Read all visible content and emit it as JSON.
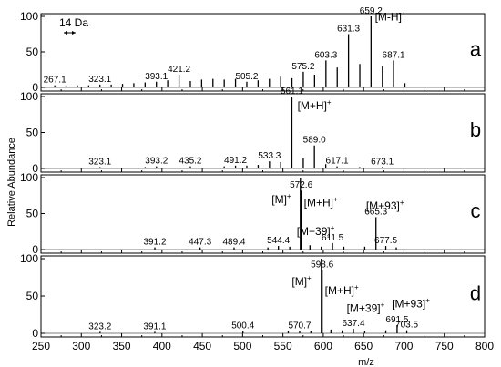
{
  "chart_data": {
    "type": "bar",
    "xlabel": "m/z",
    "ylabel": "Relative Abundance",
    "xlim": [
      250,
      800
    ],
    "x_ticks": [
      "250",
      "300",
      "350",
      "400",
      "450",
      "500",
      "550",
      "600",
      "650",
      "700",
      "750",
      "800"
    ],
    "grid": false,
    "panels": [
      {
        "letter": "a",
        "ylim": [
          0,
          100
        ],
        "y_ticks": [
          "0",
          "50",
          "100"
        ],
        "scale_annotation": "14 Da",
        "peaks": [
          {
            "x": 267.1,
            "y": 3,
            "label": "267.1"
          },
          {
            "x": 281.1,
            "y": 3
          },
          {
            "x": 295.1,
            "y": 3
          },
          {
            "x": 309.1,
            "y": 3
          },
          {
            "x": 323.1,
            "y": 4,
            "label": "323.1"
          },
          {
            "x": 337.1,
            "y": 4
          },
          {
            "x": 351.1,
            "y": 5
          },
          {
            "x": 365.1,
            "y": 6
          },
          {
            "x": 379.1,
            "y": 7
          },
          {
            "x": 393.1,
            "y": 8,
            "label": "393.1"
          },
          {
            "x": 407.1,
            "y": 10
          },
          {
            "x": 421.2,
            "y": 18,
            "label": "421.2"
          },
          {
            "x": 435.2,
            "y": 9
          },
          {
            "x": 449.2,
            "y": 11
          },
          {
            "x": 463.2,
            "y": 12
          },
          {
            "x": 477.2,
            "y": 11
          },
          {
            "x": 491.2,
            "y": 12
          },
          {
            "x": 505.2,
            "y": 8,
            "label": "505.2"
          },
          {
            "x": 519.2,
            "y": 10
          },
          {
            "x": 533.2,
            "y": 12
          },
          {
            "x": 547.2,
            "y": 15
          },
          {
            "x": 561.2,
            "y": 13
          },
          {
            "x": 575.2,
            "y": 22,
            "label": "575.2"
          },
          {
            "x": 589.2,
            "y": 18
          },
          {
            "x": 603.3,
            "y": 38,
            "label": "603.3"
          },
          {
            "x": 617.3,
            "y": 28
          },
          {
            "x": 631.3,
            "y": 75,
            "label": "631.3"
          },
          {
            "x": 645.3,
            "y": 33
          },
          {
            "x": 659.2,
            "y": 100,
            "label": "659.2"
          },
          {
            "x": 673.3,
            "y": 30
          },
          {
            "x": 687.1,
            "y": 38,
            "label": "687.1"
          },
          {
            "x": 701.2,
            "y": 6
          }
        ],
        "annotations": [
          {
            "text": "[M-H]",
            "sup": "+",
            "x": 664,
            "y": 102
          }
        ]
      },
      {
        "letter": "b",
        "ylim": [
          0,
          100
        ],
        "y_ticks": [
          "0",
          "50",
          "100"
        ],
        "peaks": [
          {
            "x": 323.1,
            "y": 2,
            "label": "323.1"
          },
          {
            "x": 379.2,
            "y": 2
          },
          {
            "x": 393.2,
            "y": 3,
            "label": "393.2"
          },
          {
            "x": 435.2,
            "y": 3,
            "label": "435.2"
          },
          {
            "x": 477.2,
            "y": 3
          },
          {
            "x": 491.2,
            "y": 4,
            "label": "491.2"
          },
          {
            "x": 505.2,
            "y": 4
          },
          {
            "x": 519.3,
            "y": 5
          },
          {
            "x": 533.3,
            "y": 10,
            "label": "533.3"
          },
          {
            "x": 547.2,
            "y": 9
          },
          {
            "x": 561.1,
            "y": 100,
            "label": "561.1"
          },
          {
            "x": 575.2,
            "y": 15
          },
          {
            "x": 589.0,
            "y": 32,
            "label": "589.0"
          },
          {
            "x": 603.1,
            "y": 6
          },
          {
            "x": 617.1,
            "y": 3,
            "label": "617.1"
          },
          {
            "x": 645.1,
            "y": 2
          },
          {
            "x": 673.1,
            "y": 2,
            "label": "673.1"
          }
        ],
        "annotations": [
          {
            "text": "[M+H]",
            "sup": "+",
            "x": 568,
            "y": 90
          }
        ]
      },
      {
        "letter": "c",
        "ylim": [
          0,
          100
        ],
        "y_ticks": [
          "0",
          "50",
          "100"
        ],
        "peaks": [
          {
            "x": 391.2,
            "y": 3,
            "label": "391.2"
          },
          {
            "x": 447.3,
            "y": 3,
            "label": "447.3"
          },
          {
            "x": 489.4,
            "y": 3,
            "label": "489.4"
          },
          {
            "x": 531.4,
            "y": 3
          },
          {
            "x": 544.4,
            "y": 5,
            "label": "544.4"
          },
          {
            "x": 558.5,
            "y": 4
          },
          {
            "x": 571.6,
            "y": 100
          },
          {
            "x": 572.6,
            "y": 82,
            "label": "572.6"
          },
          {
            "x": 583.5,
            "y": 6
          },
          {
            "x": 597.5,
            "y": 4
          },
          {
            "x": 611.5,
            "y": 9,
            "label": "611.5"
          },
          {
            "x": 625.5,
            "y": 4
          },
          {
            "x": 651.4,
            "y": 4
          },
          {
            "x": 665.3,
            "y": 45,
            "label": "665.3"
          },
          {
            "x": 677.5,
            "y": 5,
            "label": "677.5"
          },
          {
            "x": 690.5,
            "y": 3
          }
        ],
        "annotations": [
          {
            "text": "[M]",
            "sup": "+",
            "x": 536,
            "y": 72
          },
          {
            "text": "[M+H]",
            "sup": "+",
            "x": 576,
            "y": 68
          },
          {
            "text": "[M+39]",
            "sup": "+",
            "x": 567,
            "y": 28
          },
          {
            "text": "[M+93]",
            "sup": "+",
            "x": 653,
            "y": 63
          }
        ]
      },
      {
        "letter": "d",
        "ylim": [
          0,
          100
        ],
        "y_ticks": [
          "0",
          "50",
          "100"
        ],
        "peaks": [
          {
            "x": 323.2,
            "y": 2,
            "label": "323.2"
          },
          {
            "x": 391.1,
            "y": 2,
            "label": "391.1"
          },
          {
            "x": 500.4,
            "y": 3,
            "label": "500.4"
          },
          {
            "x": 556.6,
            "y": 3
          },
          {
            "x": 570.7,
            "y": 3,
            "label": "570.7"
          },
          {
            "x": 584.6,
            "y": 3
          },
          {
            "x": 597.6,
            "y": 100
          },
          {
            "x": 598.6,
            "y": 85,
            "label": "598.6"
          },
          {
            "x": 609.5,
            "y": 5
          },
          {
            "x": 623.4,
            "y": 4
          },
          {
            "x": 637.4,
            "y": 6,
            "label": "637.4"
          },
          {
            "x": 651.4,
            "y": 3
          },
          {
            "x": 677.5,
            "y": 4
          },
          {
            "x": 691.5,
            "y": 11,
            "label": "691.5"
          },
          {
            "x": 703.5,
            "y": 4,
            "label": "703.5"
          }
        ],
        "annotations": [
          {
            "text": "[M]",
            "sup": "+",
            "x": 561,
            "y": 72
          },
          {
            "text": "[M+H]",
            "sup": "+",
            "x": 602,
            "y": 60
          },
          {
            "text": "[M+39]",
            "sup": "+",
            "x": 629,
            "y": 36
          },
          {
            "text": "[M+93]",
            "sup": "+",
            "x": 685,
            "y": 42
          }
        ]
      }
    ]
  }
}
